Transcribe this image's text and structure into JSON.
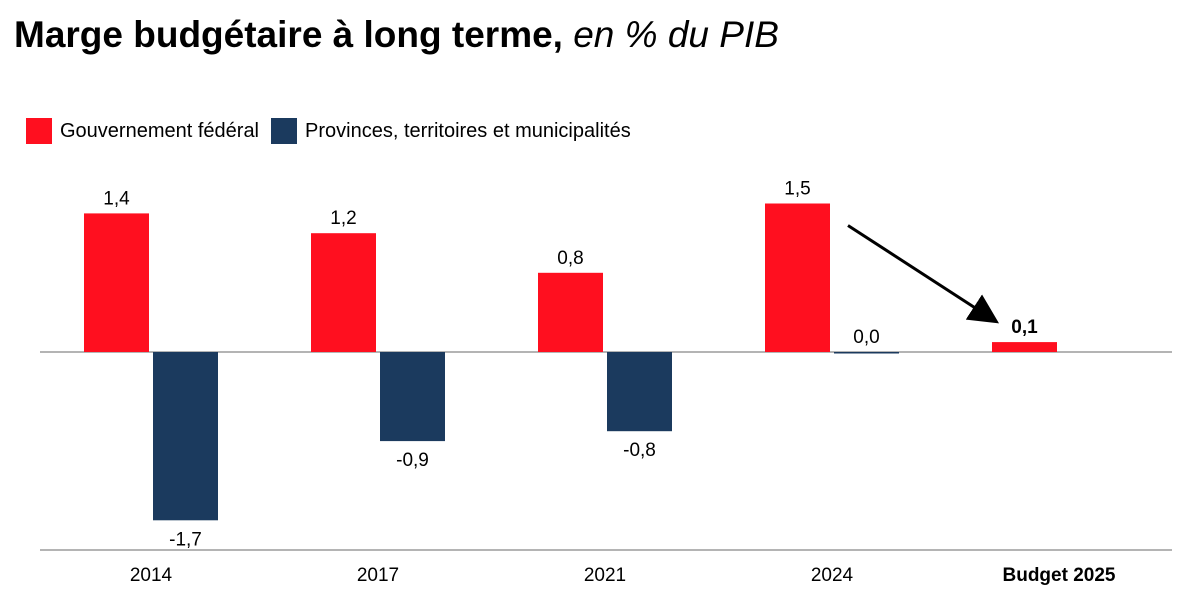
{
  "title": {
    "main": "Marge budgétaire à long terme,",
    "sub": "en % du PIB"
  },
  "colors": {
    "federal": "#ff0f1f",
    "provinces": "#1b3a5e",
    "axis": "#888888",
    "arrow": "#000000"
  },
  "chart_data": {
    "type": "bar",
    "categories": [
      "2014",
      "2017",
      "2021",
      "2024",
      "Budget 2025"
    ],
    "bold_categories": [
      "Budget 2025"
    ],
    "series": [
      {
        "name": "Gouvernement fédéral",
        "values": [
          1.4,
          1.2,
          0.8,
          1.5,
          0.1
        ]
      },
      {
        "name": "Provinces, territoires et municipalités",
        "values": [
          -1.7,
          -0.9,
          -0.8,
          0.0,
          null
        ]
      }
    ],
    "data_labels": [
      [
        "1,4",
        "1,2",
        "0,8",
        "1,5",
        "0,1"
      ],
      [
        "-1,7",
        "-0,9",
        "-0,8",
        "0,0",
        null
      ]
    ],
    "ylim": [
      -2.0,
      1.7
    ],
    "grid": false,
    "legend_position": "top-left",
    "annotation": "arrow from 2024 federal bar to Budget 2025 federal bar",
    "xlabel": "",
    "ylabel": ""
  }
}
